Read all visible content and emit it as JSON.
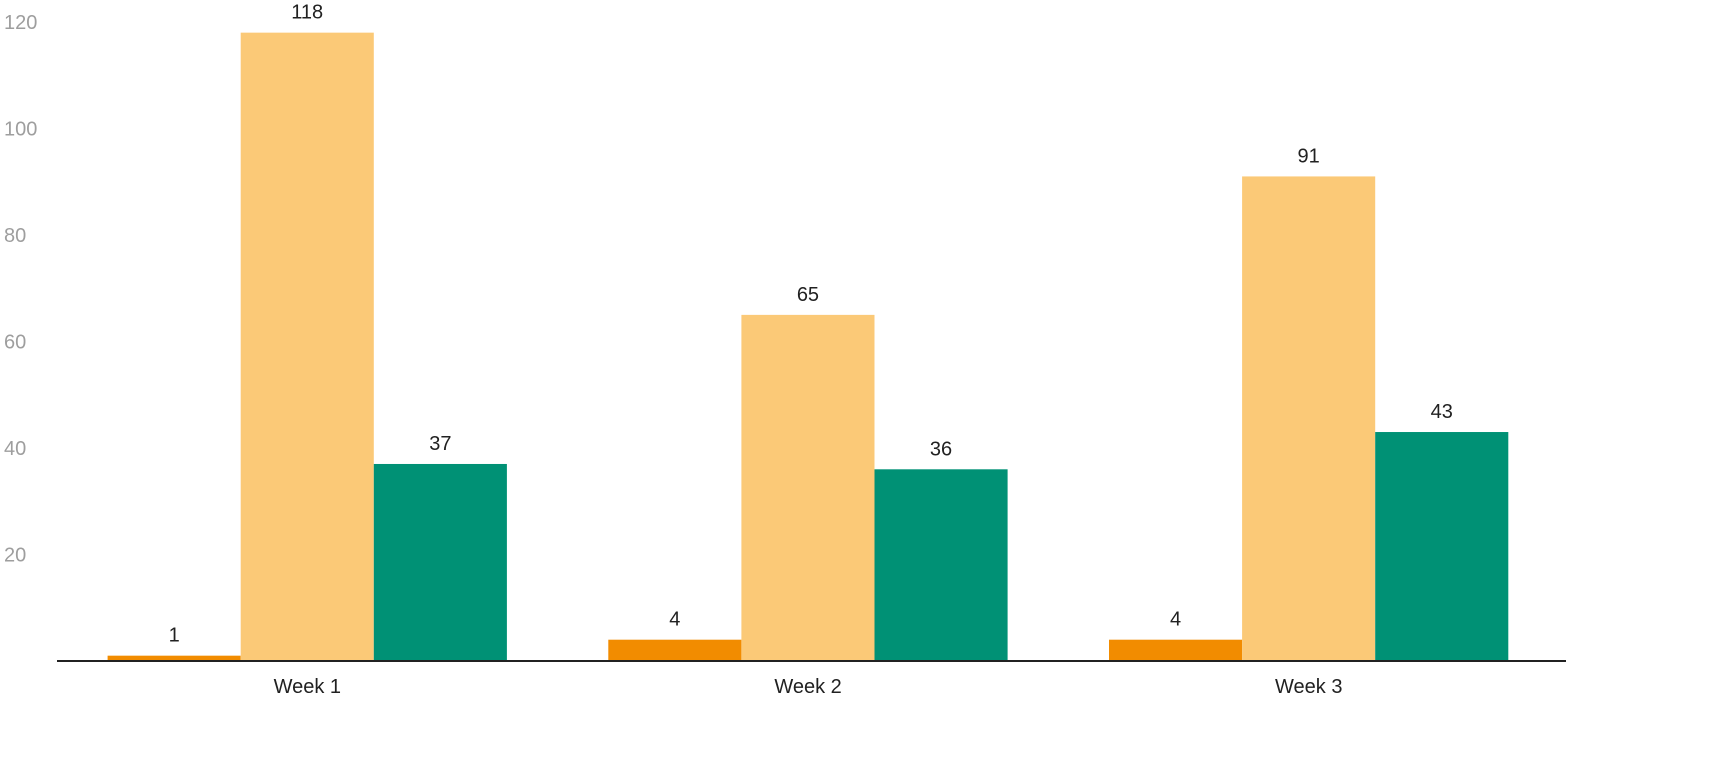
{
  "chart_data": {
    "type": "bar",
    "title": "",
    "xlabel": "",
    "ylabel": "",
    "categories": [
      "Week 1",
      "Week 2",
      "Week 3"
    ],
    "series": [
      {
        "color": "#F28C00",
        "values": [
          1,
          4,
          4
        ]
      },
      {
        "color": "#FBC977",
        "values": [
          118,
          65,
          91
        ]
      },
      {
        "color": "#009175",
        "values": [
          37,
          36,
          43
        ]
      }
    ],
    "ylim": [
      0,
      120
    ],
    "y_ticks": [
      20,
      40,
      60,
      80,
      100,
      120
    ],
    "grid": false,
    "legend": "none",
    "data_labels": true,
    "axis_color": "#212121",
    "tick_label_color": "#9e9e9e"
  }
}
